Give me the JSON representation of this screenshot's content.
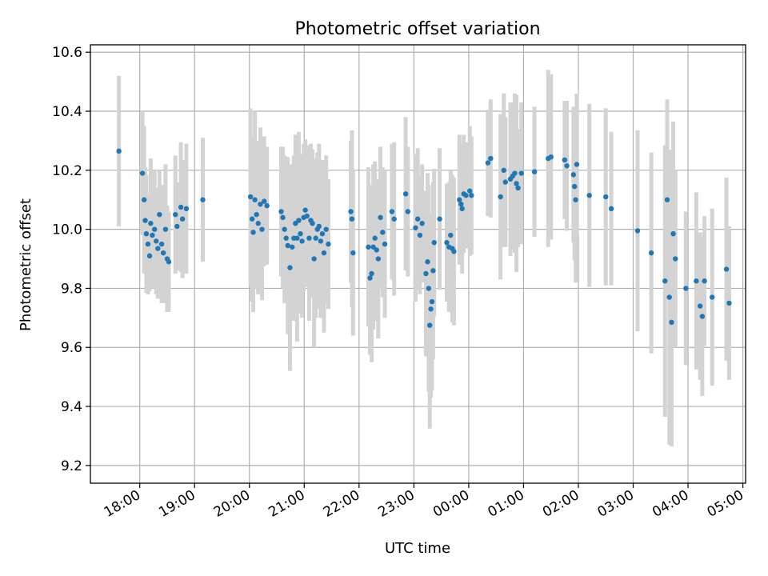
{
  "chart_data": {
    "type": "scatter",
    "title": "Photometric offset variation",
    "xlabel": "UTC time",
    "ylabel": "Photometric offset",
    "grid": true,
    "legend": "none",
    "x_ticks": [
      "18:00",
      "19:00",
      "20:00",
      "21:00",
      "22:00",
      "23:00",
      "00:00",
      "01:00",
      "02:00",
      "03:00",
      "04:00",
      "05:00"
    ],
    "y_ticks": [
      "9.2",
      "9.4",
      "9.6",
      "9.8",
      "10.0",
      "10.2",
      "10.4",
      "10.6"
    ],
    "xlim_hours": [
      17.1,
      29.05
    ],
    "ylim": [
      9.14,
      10.625
    ],
    "colors": {
      "point": "#1f77b4",
      "errorbar": "#d3d3d3",
      "grid": "#b0b0b0"
    },
    "series": [
      {
        "points": [
          {
            "t": 17.62,
            "y": 10.265,
            "e": 0.255
          },
          {
            "t": 18.05,
            "y": 10.19,
            "e": 0.21
          },
          {
            "t": 18.08,
            "y": 10.1,
            "e": 0.25
          },
          {
            "t": 18.1,
            "y": 10.03,
            "e": 0.18
          },
          {
            "t": 18.12,
            "y": 9.985,
            "e": 0.2
          },
          {
            "t": 18.15,
            "y": 9.95,
            "e": 0.17
          },
          {
            "t": 18.18,
            "y": 9.91,
            "e": 0.12
          },
          {
            "t": 18.2,
            "y": 10.02,
            "e": 0.22
          },
          {
            "t": 18.23,
            "y": 9.98,
            "e": 0.17
          },
          {
            "t": 18.27,
            "y": 10.0,
            "e": 0.2
          },
          {
            "t": 18.3,
            "y": 9.96,
            "e": 0.18
          },
          {
            "t": 18.33,
            "y": 9.935,
            "e": 0.17
          },
          {
            "t": 18.36,
            "y": 10.05,
            "e": 0.15
          },
          {
            "t": 18.4,
            "y": 9.95,
            "e": 0.2
          },
          {
            "t": 18.43,
            "y": 9.92,
            "e": 0.17
          },
          {
            "t": 18.47,
            "y": 10.0,
            "e": 0.22
          },
          {
            "t": 18.5,
            "y": 9.9,
            "e": 0.18
          },
          {
            "t": 18.53,
            "y": 9.89,
            "e": 0.17
          },
          {
            "t": 18.65,
            "y": 10.05,
            "e": 0.2
          },
          {
            "t": 18.68,
            "y": 10.01,
            "e": 0.15
          },
          {
            "t": 18.75,
            "y": 10.075,
            "e": 0.22
          },
          {
            "t": 18.78,
            "y": 10.035,
            "e": 0.2
          },
          {
            "t": 18.85,
            "y": 10.07,
            "e": 0.22
          },
          {
            "t": 19.15,
            "y": 10.1,
            "e": 0.21
          },
          {
            "t": 20.02,
            "y": 10.11,
            "e": 0.3
          },
          {
            "t": 20.05,
            "y": 10.035,
            "e": 0.28
          },
          {
            "t": 20.07,
            "y": 9.99,
            "e": 0.27
          },
          {
            "t": 20.1,
            "y": 10.1,
            "e": 0.3
          },
          {
            "t": 20.13,
            "y": 10.05,
            "e": 0.25
          },
          {
            "t": 20.16,
            "y": 10.02,
            "e": 0.24
          },
          {
            "t": 20.2,
            "y": 10.085,
            "e": 0.26
          },
          {
            "t": 20.23,
            "y": 10.0,
            "e": 0.24
          },
          {
            "t": 20.27,
            "y": 10.095,
            "e": 0.22
          },
          {
            "t": 20.32,
            "y": 10.08,
            "e": 0.2
          },
          {
            "t": 20.58,
            "y": 10.06,
            "e": 0.22
          },
          {
            "t": 20.61,
            "y": 10.04,
            "e": 0.24
          },
          {
            "t": 20.64,
            "y": 10.0,
            "e": 0.25
          },
          {
            "t": 20.67,
            "y": 9.97,
            "e": 0.22
          },
          {
            "t": 20.7,
            "y": 9.945,
            "e": 0.3
          },
          {
            "t": 20.74,
            "y": 9.87,
            "e": 0.35
          },
          {
            "t": 20.78,
            "y": 9.94,
            "e": 0.24
          },
          {
            "t": 20.81,
            "y": 9.97,
            "e": 0.28
          },
          {
            "t": 20.84,
            "y": 10.02,
            "e": 0.3
          },
          {
            "t": 20.87,
            "y": 9.97,
            "e": 0.35
          },
          {
            "t": 20.9,
            "y": 10.03,
            "e": 0.3
          },
          {
            "t": 20.93,
            "y": 9.985,
            "e": 0.27
          },
          {
            "t": 20.96,
            "y": 9.96,
            "e": 0.26
          },
          {
            "t": 20.99,
            "y": 10.04,
            "e": 0.25
          },
          {
            "t": 21.02,
            "y": 10.065,
            "e": 0.24
          },
          {
            "t": 21.05,
            "y": 10.045,
            "e": 0.24
          },
          {
            "t": 21.09,
            "y": 9.97,
            "e": 0.28
          },
          {
            "t": 21.12,
            "y": 10.03,
            "e": 0.26
          },
          {
            "t": 21.15,
            "y": 10.02,
            "e": 0.25
          },
          {
            "t": 21.18,
            "y": 9.9,
            "e": 0.3
          },
          {
            "t": 21.21,
            "y": 9.97,
            "e": 0.27
          },
          {
            "t": 21.24,
            "y": 10.0,
            "e": 0.26
          },
          {
            "t": 21.27,
            "y": 10.01,
            "e": 0.28
          },
          {
            "t": 21.3,
            "y": 9.96,
            "e": 0.26
          },
          {
            "t": 21.33,
            "y": 9.985,
            "e": 0.25
          },
          {
            "t": 21.36,
            "y": 9.92,
            "e": 0.27
          },
          {
            "t": 21.4,
            "y": 10.0,
            "e": 0.25
          },
          {
            "t": 21.44,
            "y": 9.95,
            "e": 0.22
          },
          {
            "t": 21.85,
            "y": 10.06,
            "e": 0.24
          },
          {
            "t": 21.87,
            "y": 10.035,
            "e": 0.3
          },
          {
            "t": 21.89,
            "y": 9.92,
            "e": 0.28
          },
          {
            "t": 22.17,
            "y": 9.94,
            "e": 0.27
          },
          {
            "t": 22.2,
            "y": 9.835,
            "e": 0.26
          },
          {
            "t": 22.23,
            "y": 9.85,
            "e": 0.3
          },
          {
            "t": 22.26,
            "y": 9.94,
            "e": 0.28
          },
          {
            "t": 22.29,
            "y": 9.97,
            "e": 0.26
          },
          {
            "t": 22.32,
            "y": 9.93,
            "e": 0.24
          },
          {
            "t": 22.35,
            "y": 9.9,
            "e": 0.27
          },
          {
            "t": 22.39,
            "y": 10.04,
            "e": 0.24
          },
          {
            "t": 22.43,
            "y": 9.99,
            "e": 0.22
          },
          {
            "t": 22.47,
            "y": 9.95,
            "e": 0.25
          },
          {
            "t": 22.6,
            "y": 10.06,
            "e": 0.23
          },
          {
            "t": 22.64,
            "y": 10.035,
            "e": 0.26
          },
          {
            "t": 22.85,
            "y": 10.12,
            "e": 0.26
          },
          {
            "t": 22.89,
            "y": 10.06,
            "e": 0.22
          },
          {
            "t": 23.03,
            "y": 10.005,
            "e": 0.25
          },
          {
            "t": 23.07,
            "y": 10.035,
            "e": 0.24
          },
          {
            "t": 23.11,
            "y": 9.98,
            "e": 0.2
          },
          {
            "t": 23.15,
            "y": 10.02,
            "e": 0.2
          },
          {
            "t": 23.22,
            "y": 9.85,
            "e": 0.28
          },
          {
            "t": 23.25,
            "y": 9.89,
            "e": 0.3
          },
          {
            "t": 23.27,
            "y": 9.8,
            "e": 0.35
          },
          {
            "t": 23.29,
            "y": 9.675,
            "e": 0.35
          },
          {
            "t": 23.31,
            "y": 9.73,
            "e": 0.3
          },
          {
            "t": 23.33,
            "y": 9.755,
            "e": 0.3
          },
          {
            "t": 23.35,
            "y": 9.86,
            "e": 0.3
          },
          {
            "t": 23.37,
            "y": 9.955,
            "e": 0.25
          },
          {
            "t": 23.47,
            "y": 10.035,
            "e": 0.24
          },
          {
            "t": 23.6,
            "y": 9.955,
            "e": 0.2
          },
          {
            "t": 23.64,
            "y": 9.94,
            "e": 0.22
          },
          {
            "t": 23.67,
            "y": 9.98,
            "e": 0.22
          },
          {
            "t": 23.7,
            "y": 9.935,
            "e": 0.25
          },
          {
            "t": 23.73,
            "y": 9.925,
            "e": 0.25
          },
          {
            "t": 23.83,
            "y": 10.1,
            "e": 0.22
          },
          {
            "t": 23.86,
            "y": 10.085,
            "e": 0.2
          },
          {
            "t": 23.88,
            "y": 10.07,
            "e": 0.22
          },
          {
            "t": 23.91,
            "y": 10.12,
            "e": 0.2
          },
          {
            "t": 23.95,
            "y": 10.115,
            "e": 0.18
          },
          {
            "t": 24.02,
            "y": 10.13,
            "e": 0.22
          },
          {
            "t": 24.05,
            "y": 10.115,
            "e": 0.2
          },
          {
            "t": 24.35,
            "y": 10.225,
            "e": 0.18
          },
          {
            "t": 24.4,
            "y": 10.24,
            "e": 0.2
          },
          {
            "t": 24.58,
            "y": 10.11,
            "e": 0.28
          },
          {
            "t": 24.64,
            "y": 10.2,
            "e": 0.26
          },
          {
            "t": 24.67,
            "y": 10.16,
            "e": 0.22
          },
          {
            "t": 24.76,
            "y": 10.17,
            "e": 0.26
          },
          {
            "t": 24.8,
            "y": 10.18,
            "e": 0.25
          },
          {
            "t": 24.84,
            "y": 10.19,
            "e": 0.27
          },
          {
            "t": 24.87,
            "y": 10.155,
            "e": 0.3
          },
          {
            "t": 24.9,
            "y": 10.14,
            "e": 0.2
          },
          {
            "t": 24.96,
            "y": 10.19,
            "e": 0.24
          },
          {
            "t": 25.2,
            "y": 10.195,
            "e": 0.22
          },
          {
            "t": 25.45,
            "y": 10.24,
            "e": 0.3
          },
          {
            "t": 25.5,
            "y": 10.245,
            "e": 0.28
          },
          {
            "t": 25.75,
            "y": 10.235,
            "e": 0.2
          },
          {
            "t": 25.79,
            "y": 10.215,
            "e": 0.22
          },
          {
            "t": 25.91,
            "y": 10.185,
            "e": 0.23
          },
          {
            "t": 25.93,
            "y": 10.145,
            "e": 0.25
          },
          {
            "t": 25.95,
            "y": 10.1,
            "e": 0.28
          },
          {
            "t": 25.97,
            "y": 10.22,
            "e": 0.24
          },
          {
            "t": 26.2,
            "y": 10.115,
            "e": 0.31
          },
          {
            "t": 26.5,
            "y": 10.11,
            "e": 0.3
          },
          {
            "t": 26.6,
            "y": 10.07,
            "e": 0.26
          },
          {
            "t": 27.08,
            "y": 9.995,
            "e": 0.34
          },
          {
            "t": 27.33,
            "y": 9.92,
            "e": 0.34
          },
          {
            "t": 27.58,
            "y": 9.825,
            "e": 0.46
          },
          {
            "t": 27.62,
            "y": 10.1,
            "e": 0.34
          },
          {
            "t": 27.66,
            "y": 9.77,
            "e": 0.5
          },
          {
            "t": 27.7,
            "y": 9.685,
            "e": 0.42
          },
          {
            "t": 27.73,
            "y": 9.985,
            "e": 0.38
          },
          {
            "t": 27.77,
            "y": 9.9,
            "e": 0.3
          },
          {
            "t": 27.96,
            "y": 9.8,
            "e": 0.26
          },
          {
            "t": 28.15,
            "y": 9.825,
            "e": 0.3
          },
          {
            "t": 28.22,
            "y": 9.74,
            "e": 0.25
          },
          {
            "t": 28.26,
            "y": 9.705,
            "e": 0.27
          },
          {
            "t": 28.3,
            "y": 9.825,
            "e": 0.22
          },
          {
            "t": 28.44,
            "y": 9.77,
            "e": 0.3
          },
          {
            "t": 28.7,
            "y": 9.865,
            "e": 0.31
          },
          {
            "t": 28.75,
            "y": 9.75,
            "e": 0.26
          }
        ]
      }
    ]
  }
}
